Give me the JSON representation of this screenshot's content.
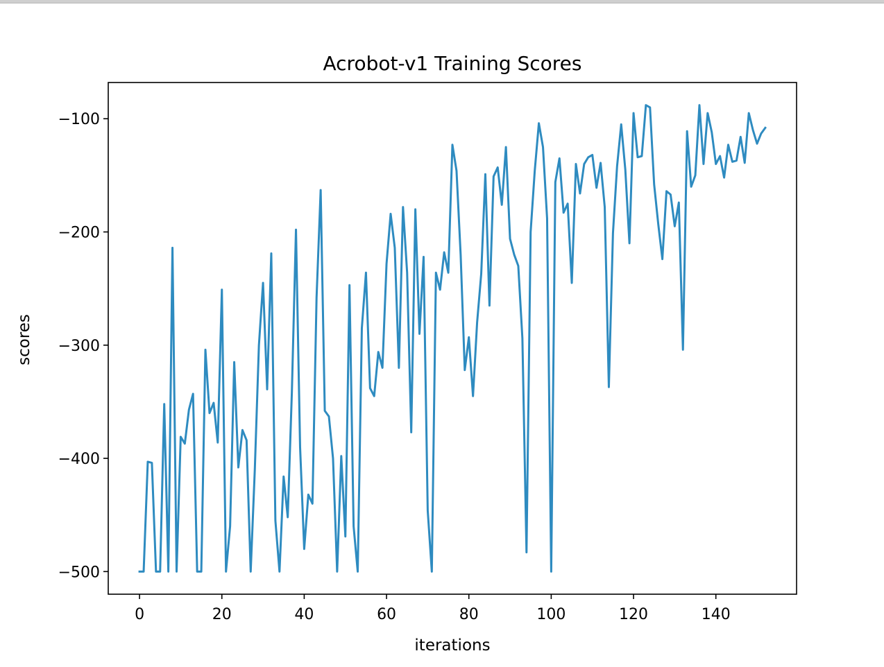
{
  "chart_data": {
    "type": "line",
    "title": "Acrobot-v1 Training Scores",
    "xlabel": "iterations",
    "ylabel": "scores",
    "xlim": [
      -7.6,
      159.6
    ],
    "ylim": [
      -520,
      -68
    ],
    "xticks": [
      0,
      20,
      40,
      60,
      80,
      100,
      120,
      140
    ],
    "xtick_labels": [
      "0",
      "20",
      "40",
      "60",
      "80",
      "100",
      "120",
      "140"
    ],
    "yticks": [
      -100,
      -200,
      -300,
      -400,
      -500
    ],
    "ytick_labels": [
      "−100",
      "−200",
      "−300",
      "−400",
      "−500"
    ],
    "grid": false,
    "legend": "none",
    "series": [
      {
        "color": "#2e8bc0",
        "x": [
          0,
          1,
          2,
          3,
          4,
          5,
          6,
          7,
          8,
          9,
          10,
          11,
          12,
          13,
          14,
          15,
          16,
          17,
          18,
          19,
          20,
          21,
          22,
          23,
          24,
          25,
          26,
          27,
          28,
          29,
          30,
          31,
          32,
          33,
          34,
          35,
          36,
          37,
          38,
          39,
          40,
          41,
          42,
          43,
          44,
          45,
          46,
          47,
          48,
          49,
          50,
          51,
          52,
          53,
          54,
          55,
          56,
          57,
          58,
          59,
          60,
          61,
          62,
          63,
          64,
          65,
          66,
          67,
          68,
          69,
          70,
          71,
          72,
          73,
          74,
          75,
          76,
          77,
          78,
          79,
          80,
          81,
          82,
          83,
          84,
          85,
          86,
          87,
          88,
          89,
          90,
          91,
          92,
          93,
          94,
          95,
          96,
          97,
          98,
          99,
          100,
          101,
          102,
          103,
          104,
          105,
          106,
          107,
          108,
          109,
          110,
          111,
          112,
          113,
          114,
          115,
          116,
          117,
          118,
          119,
          120,
          121,
          122,
          123,
          124,
          125,
          126,
          127,
          128,
          129,
          130,
          131,
          132,
          133,
          134,
          135,
          136,
          137,
          138,
          139,
          140,
          141,
          142,
          143,
          144,
          145,
          146,
          147,
          148,
          149,
          150,
          151,
          152
        ],
        "values": [
          -500,
          -500,
          -403,
          -404,
          -500,
          -500,
          -352,
          -500,
          -214,
          -500,
          -381,
          -387,
          -357,
          -343,
          -500,
          -500,
          -304,
          -360,
          -351,
          -386,
          -251,
          -500,
          -460,
          -315,
          -408,
          -375,
          -384,
          -500,
          -410,
          -300,
          -245,
          -339,
          -219,
          -455,
          -500,
          -416,
          -452,
          -342,
          -198,
          -390,
          -480,
          -432,
          -440,
          -258,
          -163,
          -358,
          -363,
          -400,
          -500,
          -398,
          -469,
          -247,
          -460,
          -500,
          -285,
          -236,
          -338,
          -345,
          -306,
          -320,
          -228,
          -184,
          -214,
          -320,
          -178,
          -236,
          -377,
          -180,
          -290,
          -222,
          -446,
          -500,
          -236,
          -251,
          -218,
          -236,
          -123,
          -146,
          -220,
          -322,
          -293,
          -345,
          -280,
          -237,
          -149,
          -265,
          -151,
          -143,
          -176,
          -125,
          -206,
          -220,
          -230,
          -294,
          -483,
          -200,
          -146,
          -104,
          -125,
          -188,
          -500,
          -156,
          -135,
          -183,
          -175,
          -245,
          -140,
          -166,
          -140,
          -134,
          -132,
          -161,
          -139,
          -178,
          -337,
          -201,
          -142,
          -105,
          -145,
          -210,
          -95,
          -134,
          -133,
          -88,
          -90,
          -158,
          -193,
          -224,
          -164,
          -167,
          -195,
          -174,
          -304,
          -111,
          -160,
          -150,
          -88,
          -140,
          -95,
          -112,
          -140,
          -133,
          -152,
          -123,
          -138,
          -137,
          -116,
          -139,
          -95,
          -110,
          -122,
          -113,
          -108
        ]
      }
    ]
  }
}
